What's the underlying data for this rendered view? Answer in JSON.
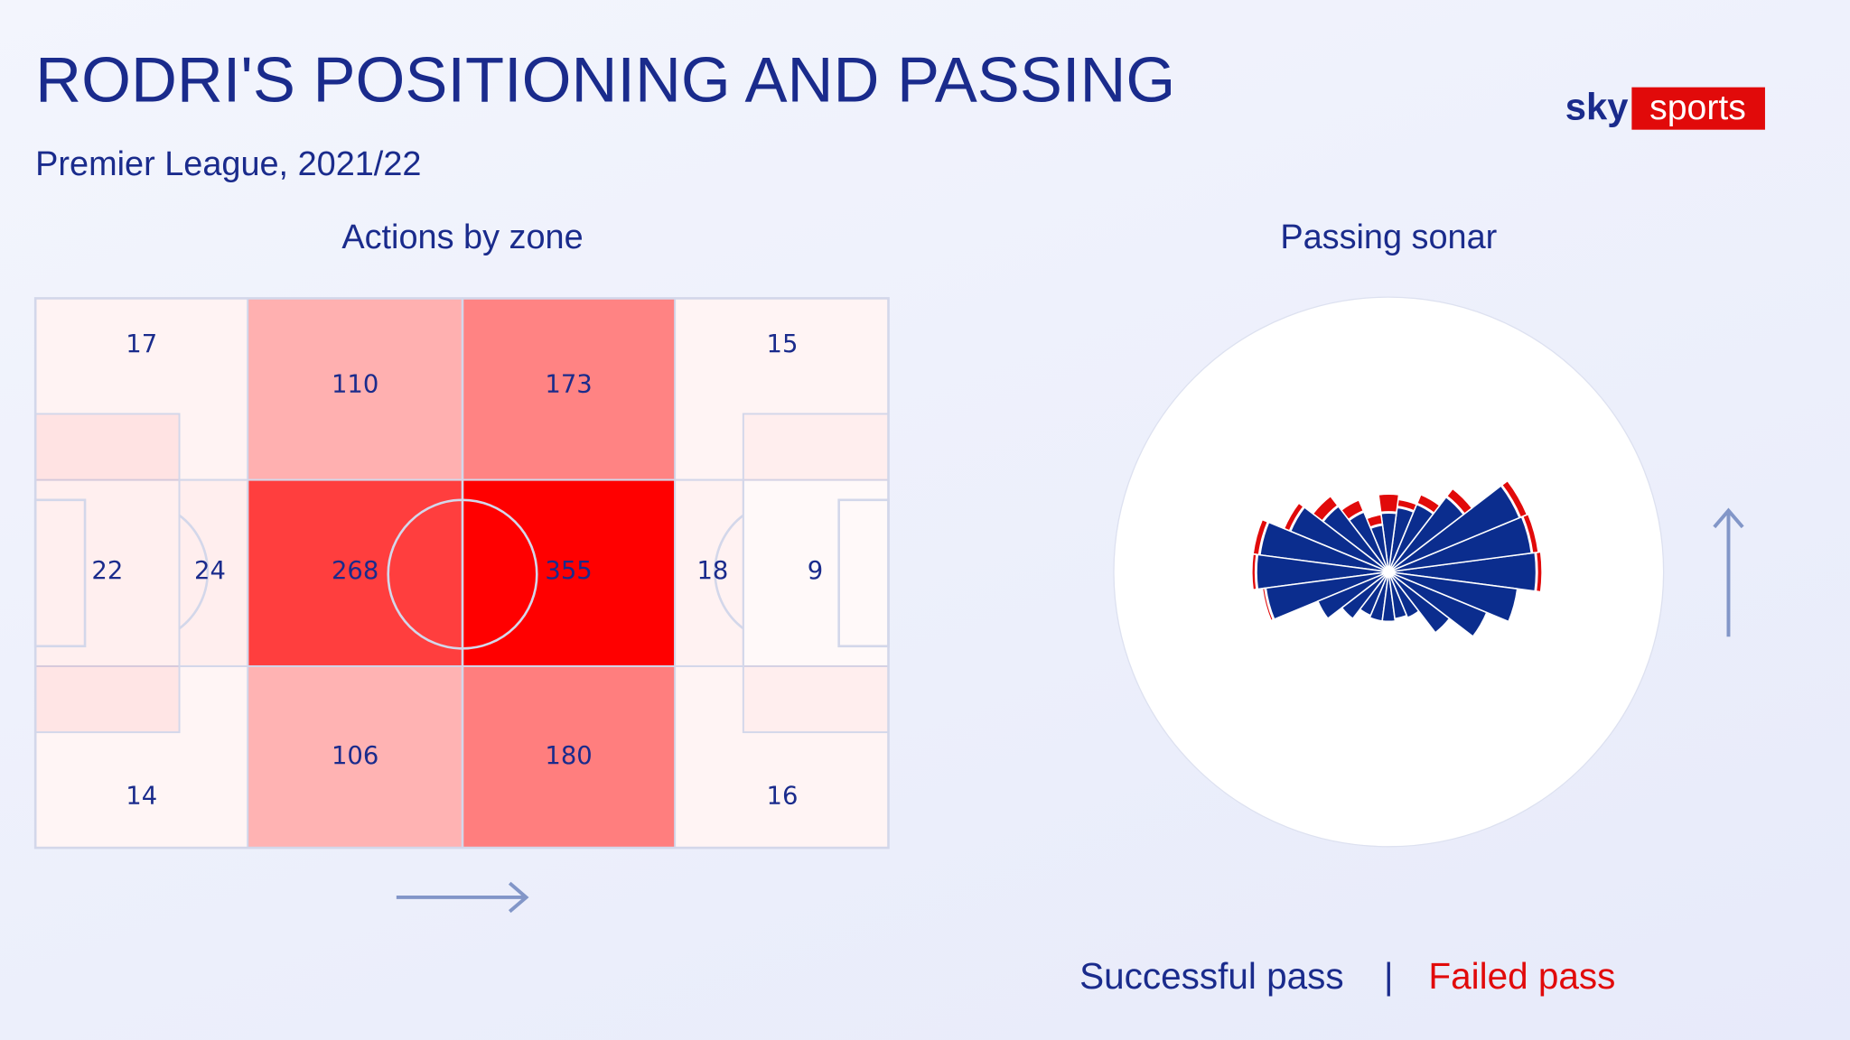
{
  "title": "RODRI'S POSITIONING AND PASSING",
  "subtitle": "Premier League, 2021/22",
  "logo": {
    "sky": "sky",
    "sports": "sports"
  },
  "chart_data": [
    {
      "type": "heatmap",
      "title": "Actions by zone",
      "color": "#ff0000",
      "values": [
        17,
        110,
        173,
        15,
        22,
        24,
        268,
        355,
        18,
        9,
        14,
        106,
        180,
        16
      ]
    },
    {
      "type": "sonar",
      "title": "Passing sonar",
      "angles": [
        0,
        15,
        30,
        45,
        60,
        75,
        90,
        105,
        120,
        135,
        150,
        165,
        180,
        195,
        210,
        225,
        240,
        255,
        270,
        285,
        300,
        315,
        330,
        345
      ],
      "series": [
        {
          "name": "Successful pass",
          "color": "#0b2d8e",
          "values": [
            125,
            122,
            120,
            80,
            62,
            55,
            50,
            40,
            55,
            70,
            90,
            110,
            112,
            105,
            65,
            50,
            40,
            42,
            42,
            40,
            42,
            65,
            90,
            110
          ]
        },
        {
          "name": "Failed pass",
          "color": "#e10a0a",
          "values": [
            4,
            5,
            6,
            8,
            8,
            6,
            15,
            8,
            10,
            10,
            5,
            5,
            3,
            2,
            0,
            0,
            0,
            0,
            0,
            0,
            0,
            0,
            0,
            0
          ]
        }
      ],
      "legend_separator": "|"
    }
  ]
}
